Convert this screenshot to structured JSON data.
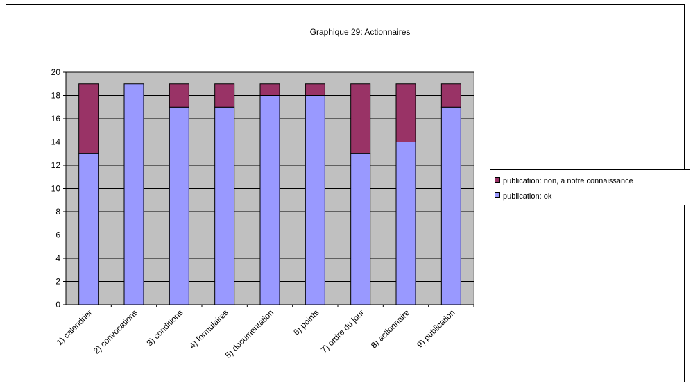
{
  "chart_data": {
    "type": "bar",
    "stacked": true,
    "title": "Graphique 29: Actionnaires",
    "xlabel": "",
    "ylabel": "",
    "categories": [
      "1) calendrier",
      "2) convocations",
      "3) conditions",
      "4) formulaires",
      "5) documentation",
      "6) points",
      "7) ordre du jour",
      "8) actionnaire",
      "9) publication"
    ],
    "series": [
      {
        "name": "publication: ok",
        "color": "#9999ff",
        "values": [
          13,
          19,
          17,
          17,
          18,
          18,
          13,
          14,
          17
        ]
      },
      {
        "name": "publication: non, à notre connaissance",
        "color": "#993366",
        "values": [
          6,
          0,
          2,
          2,
          1,
          1,
          6,
          5,
          2
        ]
      }
    ],
    "ylim": [
      0,
      20
    ],
    "yticks": [
      0,
      2,
      4,
      6,
      8,
      10,
      12,
      14,
      16,
      18,
      20
    ],
    "grid": true,
    "plot_background": "#c0c0c0",
    "legend_position": "right"
  }
}
